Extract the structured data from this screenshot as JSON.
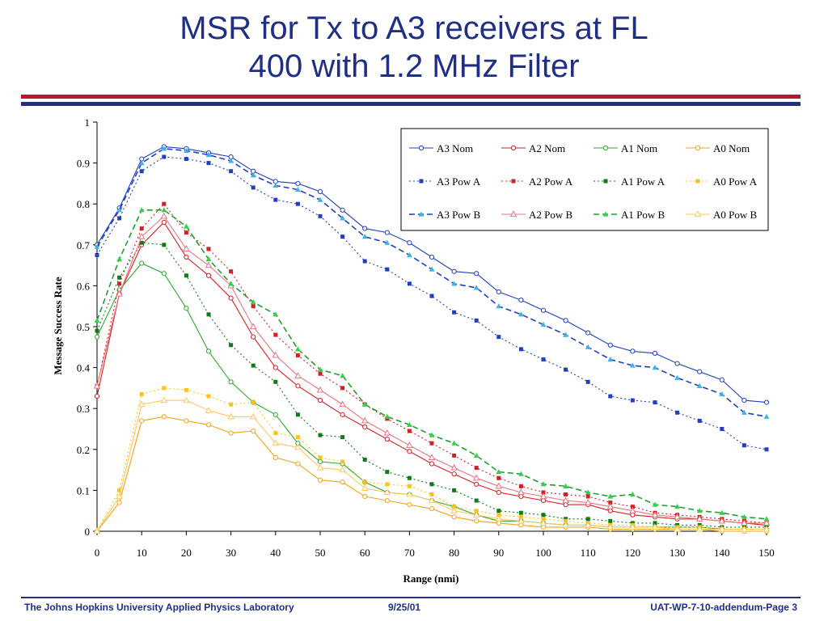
{
  "slide": {
    "title_lines": [
      "MSR for Tx to A3 receivers at FL",
      "400 with 1.2 MHz Filter"
    ],
    "footer": {
      "left": "The Johns Hopkins University Applied Physics Laboratory",
      "center": "9/25/01",
      "right": "UAT-WP-7-10-addendum-Page 3"
    },
    "colors": {
      "title": "#1f2f86",
      "rule_red": "#c3122f",
      "rule_navy": "#24307a"
    }
  },
  "chart_data": {
    "type": "line",
    "xlabel": "Range (nmi)",
    "ylabel": "Message Success Rate",
    "xlim": [
      0,
      150
    ],
    "ylim": [
      0,
      1
    ],
    "x_ticks": [
      "0",
      "10",
      "20",
      "30",
      "40",
      "50",
      "60",
      "70",
      "80",
      "90",
      "100",
      "110",
      "120",
      "130",
      "140",
      "150"
    ],
    "y_ticks": [
      "0",
      "0.1",
      "0.2",
      "0.3",
      "0.4",
      "0.5",
      "0.6",
      "0.7",
      "0.8",
      "0.9",
      "1"
    ],
    "grid": false,
    "legend_position": "top-right",
    "x": [
      0,
      5,
      10,
      15,
      20,
      25,
      30,
      35,
      40,
      45,
      50,
      55,
      60,
      65,
      70,
      75,
      80,
      85,
      90,
      95,
      100,
      105,
      110,
      115,
      120,
      125,
      130,
      135,
      140,
      145,
      150
    ],
    "series": [
      {
        "name": "A3 Nom",
        "color": "#1f3fbf",
        "dash": "solid",
        "marker": "circle-open",
        "values": [
          0.7,
          0.79,
          0.91,
          0.94,
          0.935,
          0.925,
          0.915,
          0.88,
          0.855,
          0.85,
          0.83,
          0.785,
          0.74,
          0.73,
          0.705,
          0.67,
          0.635,
          0.63,
          0.585,
          0.565,
          0.54,
          0.515,
          0.485,
          0.455,
          0.44,
          0.435,
          0.41,
          0.39,
          0.37,
          0.32,
          0.315
        ]
      },
      {
        "name": "A2 Nom",
        "color": "#d42020",
        "dash": "solid",
        "marker": "circle-open",
        "values": [
          0.33,
          0.58,
          0.7,
          0.755,
          0.67,
          0.625,
          0.57,
          0.475,
          0.4,
          0.355,
          0.32,
          0.285,
          0.255,
          0.225,
          0.195,
          0.165,
          0.14,
          0.115,
          0.095,
          0.085,
          0.075,
          0.065,
          0.065,
          0.05,
          0.04,
          0.035,
          0.03,
          0.03,
          0.025,
          0.02,
          0.015
        ]
      },
      {
        "name": "A1 Nom",
        "color": "#2ea82e",
        "dash": "solid",
        "marker": "circle-open",
        "values": [
          0.475,
          0.59,
          0.655,
          0.63,
          0.545,
          0.44,
          0.365,
          0.315,
          0.285,
          0.215,
          0.17,
          0.165,
          0.12,
          0.095,
          0.09,
          0.075,
          0.06,
          0.04,
          0.025,
          0.025,
          0.02,
          0.015,
          0.015,
          0.01,
          0.01,
          0.01,
          0.01,
          0.01,
          0.005,
          0.005,
          0.005
        ]
      },
      {
        "name": "A0 Nom",
        "color": "#f3a21b",
        "dash": "solid",
        "marker": "circle-open",
        "values": [
          0.0,
          0.07,
          0.27,
          0.28,
          0.27,
          0.26,
          0.24,
          0.245,
          0.18,
          0.165,
          0.125,
          0.12,
          0.085,
          0.075,
          0.065,
          0.055,
          0.035,
          0.025,
          0.02,
          0.015,
          0.01,
          0.01,
          0.01,
          0.005,
          0.005,
          0.005,
          0.005,
          0.005,
          0.0,
          0.0,
          0.0
        ]
      },
      {
        "name": "A3 Pow A",
        "color": "#1f3fbf",
        "dash": "dotted",
        "marker": "square-filled",
        "values": [
          0.675,
          0.765,
          0.88,
          0.915,
          0.91,
          0.9,
          0.88,
          0.84,
          0.81,
          0.8,
          0.77,
          0.72,
          0.66,
          0.64,
          0.605,
          0.575,
          0.535,
          0.515,
          0.475,
          0.445,
          0.42,
          0.395,
          0.365,
          0.33,
          0.32,
          0.315,
          0.29,
          0.27,
          0.25,
          0.21,
          0.2
        ]
      },
      {
        "name": "A2 Pow A",
        "color": "#d42020",
        "dash": "dotted",
        "marker": "square-filled",
        "values": [
          0.355,
          0.605,
          0.74,
          0.8,
          0.73,
          0.69,
          0.635,
          0.55,
          0.48,
          0.43,
          0.385,
          0.35,
          0.31,
          0.275,
          0.245,
          0.215,
          0.185,
          0.155,
          0.13,
          0.11,
          0.095,
          0.09,
          0.085,
          0.07,
          0.06,
          0.045,
          0.04,
          0.035,
          0.03,
          0.025,
          0.02
        ]
      },
      {
        "name": "A1 Pow A",
        "color": "#0e7a1a",
        "dash": "dotted",
        "marker": "square-filled",
        "values": [
          0.49,
          0.62,
          0.705,
          0.7,
          0.625,
          0.53,
          0.455,
          0.405,
          0.365,
          0.285,
          0.235,
          0.23,
          0.175,
          0.145,
          0.13,
          0.115,
          0.1,
          0.075,
          0.05,
          0.045,
          0.04,
          0.03,
          0.03,
          0.025,
          0.02,
          0.02,
          0.015,
          0.015,
          0.01,
          0.01,
          0.01
        ]
      },
      {
        "name": "A0 Pow A",
        "color": "#ffc21a",
        "dash": "dotted",
        "marker": "square-filled",
        "values": [
          0.0,
          0.1,
          0.335,
          0.35,
          0.345,
          0.33,
          0.31,
          0.315,
          0.24,
          0.23,
          0.18,
          0.17,
          0.12,
          0.115,
          0.11,
          0.09,
          0.06,
          0.05,
          0.04,
          0.035,
          0.03,
          0.025,
          0.02,
          0.015,
          0.015,
          0.01,
          0.01,
          0.01,
          0.005,
          0.005,
          0.005
        ]
      },
      {
        "name": "A3 Pow B",
        "color": "#1f3fbf",
        "dash": "dashed",
        "marker": "triangle-filled",
        "marker_color": "#3cb4e6",
        "values": [
          0.695,
          0.785,
          0.9,
          0.935,
          0.93,
          0.92,
          0.905,
          0.87,
          0.845,
          0.835,
          0.81,
          0.765,
          0.72,
          0.705,
          0.675,
          0.64,
          0.605,
          0.595,
          0.55,
          0.53,
          0.505,
          0.48,
          0.45,
          0.42,
          0.405,
          0.4,
          0.375,
          0.355,
          0.335,
          0.29,
          0.28
        ]
      },
      {
        "name": "A2 Pow B",
        "color": "#e8747f",
        "dash": "solid",
        "marker": "triangle-open",
        "values": [
          0.355,
          0.58,
          0.72,
          0.77,
          0.69,
          0.65,
          0.6,
          0.5,
          0.43,
          0.38,
          0.345,
          0.31,
          0.27,
          0.24,
          0.21,
          0.18,
          0.155,
          0.13,
          0.11,
          0.095,
          0.085,
          0.075,
          0.07,
          0.06,
          0.05,
          0.04,
          0.035,
          0.03,
          0.025,
          0.02,
          0.02
        ]
      },
      {
        "name": "A1 Pow B",
        "color": "#1f9f2f",
        "dash": "dashed",
        "marker": "triangle-filled",
        "marker_color": "#34d04a",
        "values": [
          0.515,
          0.665,
          0.785,
          0.785,
          0.745,
          0.665,
          0.605,
          0.56,
          0.53,
          0.445,
          0.395,
          0.38,
          0.31,
          0.28,
          0.26,
          0.235,
          0.215,
          0.185,
          0.145,
          0.14,
          0.115,
          0.11,
          0.095,
          0.085,
          0.09,
          0.065,
          0.06,
          0.05,
          0.045,
          0.035,
          0.03
        ]
      },
      {
        "name": "A0 Pow B",
        "color": "#ffc85e",
        "dash": "solid",
        "marker": "triangle-open",
        "values": [
          0.0,
          0.085,
          0.31,
          0.32,
          0.32,
          0.295,
          0.28,
          0.28,
          0.215,
          0.205,
          0.155,
          0.15,
          0.105,
          0.095,
          0.09,
          0.075,
          0.05,
          0.04,
          0.03,
          0.025,
          0.02,
          0.015,
          0.015,
          0.01,
          0.01,
          0.01,
          0.005,
          0.005,
          0.005,
          0.005,
          0.005
        ]
      }
    ]
  }
}
